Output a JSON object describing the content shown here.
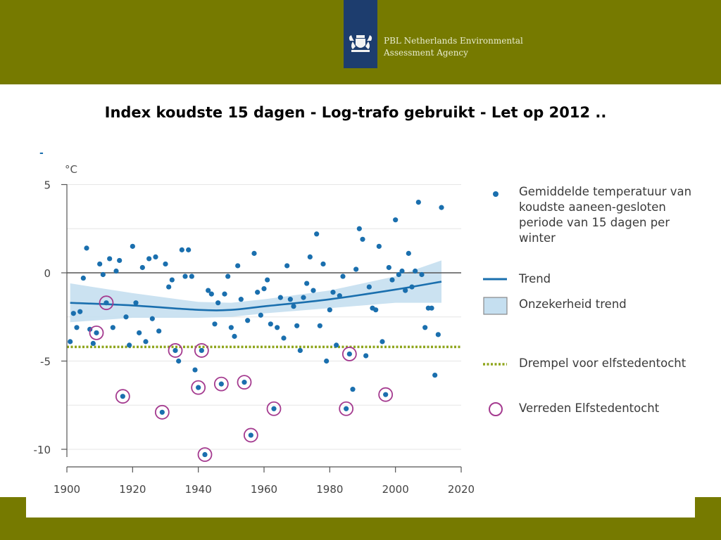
{
  "header": {
    "org_line1": "PBL Netherlands Environmental",
    "org_line2": "Assessment Agency",
    "logo_icon": "netherlands-coat-of-arms-icon"
  },
  "slide": {
    "title": "Index koudste 15 dagen - Log-trafo gebruikt - Let op 2012 ..",
    "dash": "-"
  },
  "colors": {
    "band": "#767a00",
    "logo_bg": "#1d3d6e",
    "dots": "#1a6fae",
    "trend": "#1a6fae",
    "band_fill": "#c5dff0",
    "threshold": "#8fa51c",
    "circle": "#a43a8f"
  },
  "legend": {
    "points": "Gemiddelde temperatuur van koudste aaneen-gesloten periode van 15 dagen per winter",
    "trend": "Trend",
    "band": "Onzekerheid trend",
    "threshold": "Drempel voor elfstedentocht",
    "circle": "Verreden Elfstedentocht"
  },
  "chart_data": {
    "type": "scatter",
    "unit": "°C",
    "xlim": [
      1900,
      2020
    ],
    "ylim": [
      -10.5,
      5
    ],
    "xticks": [
      "1900",
      "1920",
      "1940",
      "1960",
      "1980",
      "2000",
      "2020"
    ],
    "yticks": [
      "5",
      "0",
      "-5",
      "-10"
    ],
    "ytick_values": [
      5,
      0,
      -5,
      -10
    ],
    "reference_line": 0,
    "threshold": -4.2,
    "points": [
      [
        1901,
        -3.9
      ],
      [
        1902,
        -2.3
      ],
      [
        1903,
        -3.1
      ],
      [
        1904,
        -2.2
      ],
      [
        1905,
        -0.3
      ],
      [
        1906,
        1.4
      ],
      [
        1907,
        -3.2
      ],
      [
        1908,
        -4.0
      ],
      [
        1909,
        -3.4
      ],
      [
        1910,
        0.5
      ],
      [
        1911,
        -0.1
      ],
      [
        1912,
        -1.7
      ],
      [
        1913,
        0.8
      ],
      [
        1914,
        -3.1
      ],
      [
        1915,
        0.1
      ],
      [
        1916,
        0.7
      ],
      [
        1917,
        -7.0
      ],
      [
        1918,
        -2.5
      ],
      [
        1919,
        -4.1
      ],
      [
        1920,
        1.5
      ],
      [
        1921,
        -1.7
      ],
      [
        1922,
        -3.4
      ],
      [
        1923,
        0.3
      ],
      [
        1924,
        -3.9
      ],
      [
        1925,
        0.8
      ],
      [
        1926,
        -2.6
      ],
      [
        1927,
        0.9
      ],
      [
        1928,
        -3.3
      ],
      [
        1929,
        -7.9
      ],
      [
        1930,
        0.5
      ],
      [
        1931,
        -0.8
      ],
      [
        1932,
        -0.4
      ],
      [
        1933,
        -4.4
      ],
      [
        1934,
        -5.0
      ],
      [
        1935,
        1.3
      ],
      [
        1936,
        -0.2
      ],
      [
        1937,
        1.3
      ],
      [
        1938,
        -0.2
      ],
      [
        1939,
        -5.5
      ],
      [
        1940,
        -6.5
      ],
      [
        1941,
        -4.4
      ],
      [
        1942,
        -10.3
      ],
      [
        1943,
        -1.0
      ],
      [
        1944,
        -1.2
      ],
      [
        1945,
        -2.9
      ],
      [
        1946,
        -1.7
      ],
      [
        1947,
        -6.3
      ],
      [
        1948,
        -1.2
      ],
      [
        1949,
        -0.2
      ],
      [
        1950,
        -3.1
      ],
      [
        1951,
        -3.6
      ],
      [
        1952,
        0.4
      ],
      [
        1953,
        -1.5
      ],
      [
        1954,
        -6.2
      ],
      [
        1955,
        -2.7
      ],
      [
        1956,
        -9.2
      ],
      [
        1957,
        1.1
      ],
      [
        1958,
        -1.1
      ],
      [
        1959,
        -2.4
      ],
      [
        1960,
        -0.9
      ],
      [
        1961,
        -0.4
      ],
      [
        1962,
        -2.9
      ],
      [
        1963,
        -7.7
      ],
      [
        1964,
        -3.1
      ],
      [
        1965,
        -1.4
      ],
      [
        1966,
        -3.7
      ],
      [
        1967,
        0.4
      ],
      [
        1968,
        -1.5
      ],
      [
        1969,
        -1.9
      ],
      [
        1970,
        -3.0
      ],
      [
        1971,
        -4.4
      ],
      [
        1972,
        -1.4
      ],
      [
        1973,
        -0.6
      ],
      [
        1974,
        0.9
      ],
      [
        1975,
        -1.0
      ],
      [
        1976,
        2.2
      ],
      [
        1977,
        -3.0
      ],
      [
        1978,
        0.5
      ],
      [
        1979,
        -5.0
      ],
      [
        1980,
        -2.1
      ],
      [
        1981,
        -1.1
      ],
      [
        1982,
        -4.1
      ],
      [
        1983,
        -1.3
      ],
      [
        1984,
        -0.2
      ],
      [
        1985,
        -7.7
      ],
      [
        1986,
        -4.6
      ],
      [
        1987,
        -6.6
      ],
      [
        1988,
        0.2
      ],
      [
        1989,
        2.5
      ],
      [
        1990,
        1.9
      ],
      [
        1991,
        -4.7
      ],
      [
        1992,
        -0.8
      ],
      [
        1993,
        -2.0
      ],
      [
        1994,
        -2.1
      ],
      [
        1995,
        1.5
      ],
      [
        1996,
        -3.9
      ],
      [
        1997,
        -6.9
      ],
      [
        1998,
        0.3
      ],
      [
        1999,
        -0.4
      ],
      [
        2000,
        3.0
      ],
      [
        2001,
        -0.1
      ],
      [
        2002,
        0.1
      ],
      [
        2003,
        -1.0
      ],
      [
        2004,
        1.1
      ],
      [
        2005,
        -0.8
      ],
      [
        2006,
        0.1
      ],
      [
        2007,
        4.0
      ],
      [
        2008,
        -0.1
      ],
      [
        2009,
        -3.1
      ],
      [
        2010,
        -2.0
      ],
      [
        2011,
        -2.0
      ],
      [
        2012,
        -5.8
      ],
      [
        2013,
        -3.5
      ],
      [
        2014,
        3.7
      ]
    ],
    "elfstedentocht_years": [
      1909,
      1912,
      1917,
      1929,
      1933,
      1940,
      1941,
      1942,
      1947,
      1954,
      1956,
      1963,
      1985,
      1986,
      1997
    ],
    "trend": [
      [
        1901,
        -1.7
      ],
      [
        1920,
        -1.85
      ],
      [
        1940,
        -2.1
      ],
      [
        1950,
        -2.1
      ],
      [
        1960,
        -1.9
      ],
      [
        1980,
        -1.5
      ],
      [
        2000,
        -0.95
      ],
      [
        2014,
        -0.5
      ]
    ],
    "trend_upper": [
      [
        1901,
        -0.6
      ],
      [
        1920,
        -1.15
      ],
      [
        1940,
        -1.65
      ],
      [
        1950,
        -1.7
      ],
      [
        1960,
        -1.5
      ],
      [
        1980,
        -1.0
      ],
      [
        2000,
        -0.2
      ],
      [
        2014,
        0.7
      ]
    ],
    "trend_lower": [
      [
        1901,
        -2.8
      ],
      [
        1920,
        -2.55
      ],
      [
        1940,
        -2.55
      ],
      [
        1950,
        -2.5
      ],
      [
        1960,
        -2.3
      ],
      [
        1980,
        -2.0
      ],
      [
        2000,
        -1.7
      ],
      [
        2014,
        -1.7
      ]
    ]
  }
}
